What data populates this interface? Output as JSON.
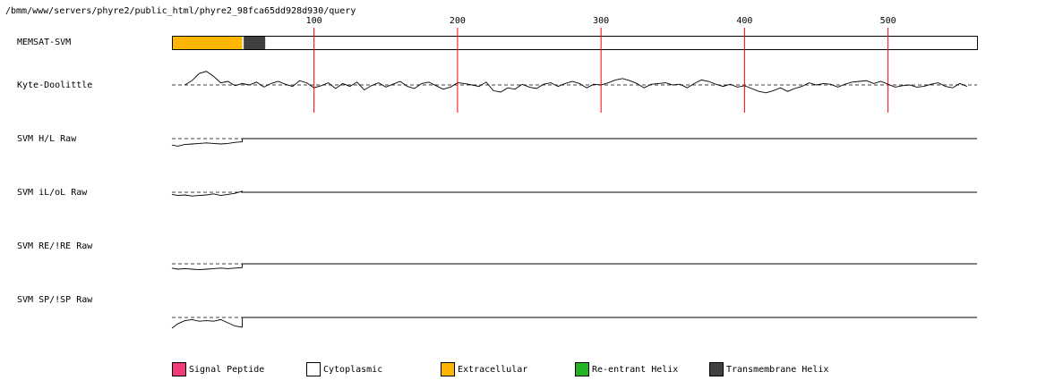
{
  "chart_data": {
    "type": "line",
    "title": "/bmm/www/servers/phyre2/public_html/phyre2_98fca65dd928d930/query",
    "x_ticks": [
      100,
      200,
      300,
      400,
      500
    ],
    "xlim": [
      1,
      562
    ],
    "colors": {
      "signal_peptide": "#f03c7a",
      "cytoplasmic": "#ffffff",
      "extracellular": "#ffb400",
      "re_entrant_helix": "#23b323",
      "transmembrane_helix": "#404040",
      "marker": "#ff0000"
    },
    "memsat": {
      "label": "MEMSAT-SVM",
      "segments": [
        {
          "type": "extracellular",
          "start": 1,
          "end": 50
        },
        {
          "type": "transmembrane_helix",
          "start": 51,
          "end": 66
        },
        {
          "type": "cytoplasmic",
          "start": 67,
          "end": 562
        }
      ]
    },
    "tracks": [
      {
        "key": "kd",
        "label": "Kyte-Doolittle"
      },
      {
        "key": "hl",
        "label": "SVM H/L Raw"
      },
      {
        "key": "ilol",
        "label": "SVM iL/oL Raw"
      },
      {
        "key": "reire",
        "label": "SVM RE/!RE Raw"
      },
      {
        "key": "spisp",
        "label": "SVM SP/!SP Raw"
      }
    ],
    "kyte_doolittle": {
      "x": [
        10,
        15,
        20,
        25,
        30,
        35,
        40,
        45,
        50,
        55,
        60,
        65,
        70,
        75,
        80,
        85,
        90,
        95,
        100,
        105,
        110,
        115,
        120,
        125,
        130,
        135,
        140,
        145,
        150,
        155,
        160,
        165,
        170,
        175,
        180,
        185,
        190,
        195,
        200,
        205,
        210,
        215,
        220,
        225,
        230,
        235,
        240,
        245,
        250,
        255,
        260,
        265,
        270,
        275,
        280,
        285,
        290,
        295,
        300,
        305,
        310,
        315,
        320,
        325,
        330,
        335,
        340,
        345,
        350,
        355,
        360,
        365,
        370,
        375,
        380,
        385,
        390,
        395,
        400,
        405,
        410,
        415,
        420,
        425,
        430,
        435,
        440,
        445,
        450,
        455,
        460,
        465,
        470,
        475,
        480,
        485,
        490,
        495,
        500,
        505,
        510,
        515,
        520,
        525,
        530,
        535,
        540,
        545,
        550,
        555
      ],
      "y": [
        0.0,
        0.6,
        1.6,
        1.9,
        1.2,
        0.3,
        0.5,
        -0.1,
        0.2,
        0.0,
        0.4,
        -0.3,
        0.2,
        0.5,
        0.1,
        -0.2,
        0.6,
        0.3,
        -0.4,
        -0.1,
        0.3,
        -0.5,
        0.2,
        -0.2,
        0.4,
        -0.7,
        -0.1,
        0.3,
        -0.3,
        0.1,
        0.5,
        -0.2,
        -0.5,
        0.2,
        0.4,
        -0.1,
        -0.6,
        -0.3,
        0.3,
        0.2,
        0.0,
        -0.2,
        0.4,
        -0.8,
        -1.0,
        -0.4,
        -0.6,
        0.1,
        -0.3,
        -0.5,
        0.1,
        0.3,
        -0.2,
        0.2,
        0.5,
        0.2,
        -0.4,
        0.1,
        0.0,
        0.3,
        0.7,
        0.9,
        0.6,
        0.2,
        -0.4,
        0.1,
        0.2,
        0.3,
        0.0,
        0.1,
        -0.4,
        0.2,
        0.7,
        0.5,
        0.1,
        -0.2,
        0.1,
        -0.3,
        -0.1,
        -0.5,
        -0.9,
        -1.1,
        -0.8,
        -0.4,
        -0.9,
        -0.5,
        -0.2,
        0.3,
        0.0,
        0.2,
        0.1,
        -0.3,
        0.1,
        0.4,
        0.5,
        0.6,
        0.2,
        0.5,
        0.1,
        -0.3,
        -0.1,
        0.0,
        -0.3,
        -0.2,
        0.1,
        0.3,
        -0.2,
        -0.4,
        0.2,
        -0.2
      ],
      "ylim": [
        -3,
        3
      ]
    },
    "svm_raw": {
      "x": [
        1,
        5,
        10,
        15,
        20,
        25,
        30,
        35,
        40,
        45,
        50
      ],
      "hl": [
        -0.6,
        -0.7,
        -0.55,
        -0.5,
        -0.45,
        -0.4,
        -0.45,
        -0.5,
        -0.45,
        -0.35,
        -0.3
      ],
      "ilol": [
        -0.2,
        -0.3,
        -0.25,
        -0.35,
        -0.3,
        -0.25,
        -0.15,
        -0.3,
        -0.2,
        -0.1,
        0.1
      ],
      "reire": [
        -0.4,
        -0.5,
        -0.45,
        -0.5,
        -0.55,
        -0.5,
        -0.45,
        -0.4,
        -0.45,
        -0.4,
        -0.35
      ],
      "spisp": [
        -1.0,
        -0.6,
        -0.3,
        -0.2,
        -0.35,
        -0.3,
        -0.35,
        -0.2,
        -0.5,
        -0.8,
        -0.9
      ]
    }
  },
  "legend": [
    {
      "key": "signal_peptide",
      "label": "Signal Peptide"
    },
    {
      "key": "cytoplasmic",
      "label": "Cytoplasmic"
    },
    {
      "key": "extracellular",
      "label": "Extracellular"
    },
    {
      "key": "re_entrant_helix",
      "label": "Re-entrant Helix"
    },
    {
      "key": "transmembrane_helix",
      "label": "Transmembrane Helix"
    }
  ]
}
